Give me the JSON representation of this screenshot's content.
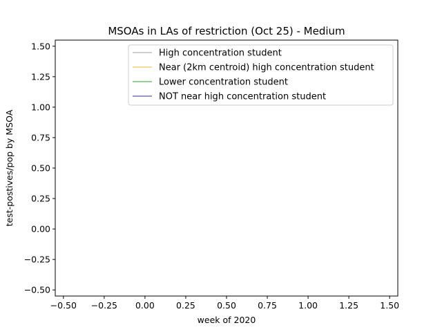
{
  "chart_data": {
    "type": "line",
    "title": "MSOAs in LAs of restriction (Oct 25) - Medium",
    "xlabel": "week of 2020",
    "ylabel": "test-postives/pop by MSOA",
    "xlim": [
      -0.55,
      1.55
    ],
    "ylim": [
      -0.55,
      1.55
    ],
    "xticks": [
      -0.5,
      -0.25,
      0.0,
      0.25,
      0.5,
      0.75,
      1.0,
      1.25,
      1.5
    ],
    "xtick_labels": [
      "−0.50",
      "−0.25",
      "0.00",
      "0.25",
      "0.50",
      "0.75",
      "1.00",
      "1.25",
      "1.50"
    ],
    "yticks": [
      -0.5,
      -0.25,
      0.0,
      0.25,
      0.5,
      0.75,
      1.0,
      1.25,
      1.5
    ],
    "ytick_labels": [
      "−0.50",
      "−0.25",
      "0.00",
      "0.25",
      "0.50",
      "0.75",
      "1.00",
      "1.25",
      "1.50"
    ],
    "grid": false,
    "legend_position": "top-right",
    "series": [
      {
        "name": "High concentration student",
        "color": "#a0a0a0",
        "x": [],
        "y": []
      },
      {
        "name": "Near (2km centroid) high concentration student",
        "color": "#e8b830",
        "x": [],
        "y": []
      },
      {
        "name": "Lower concentration student",
        "color": "#2ca02c",
        "x": [],
        "y": []
      },
      {
        "name": "NOT near high concentration student",
        "color": "#3b2a8a",
        "x": [],
        "y": []
      }
    ]
  }
}
